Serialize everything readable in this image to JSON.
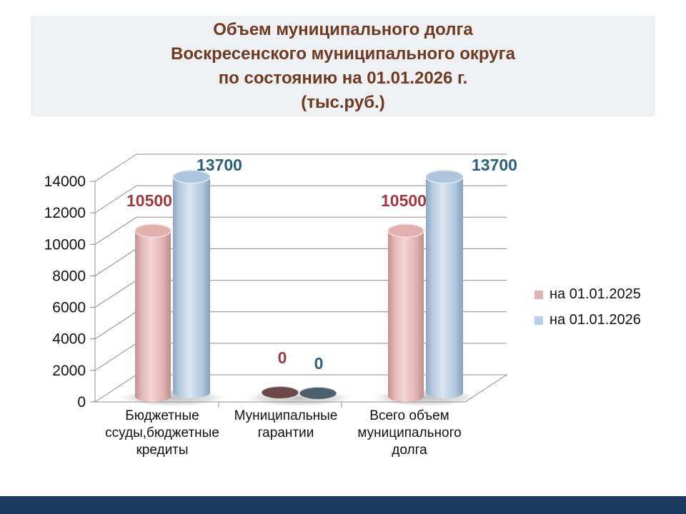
{
  "title": {
    "lines": [
      "Объем муниципального долга",
      "Воскресенского муниципального округа",
      "по состоянию на 01.01.2026 г.",
      "(тыс.руб.)"
    ],
    "color": "#6e3a20",
    "bg": "#eef0f4"
  },
  "footer": {
    "color": "#1b3960"
  },
  "chart_data": {
    "type": "bar",
    "style": "3d-cylinder",
    "title": "Объем муниципального долга Воскресенского муниципального округа по состоянию на 01.01.2026 г. (тыс.руб.)",
    "categories": [
      "Бюджетные ссуды,бюджетные кредиты",
      "Муниципальные гарантии",
      "Всего объем муниципального долга"
    ],
    "category_lines": [
      [
        "Бюджетные",
        "ссуды,бюджетные",
        "кредиты"
      ],
      [
        "Муниципальные",
        "гарантии"
      ],
      [
        "Всего объем",
        "муниципального",
        "долга"
      ]
    ],
    "series": [
      {
        "name": "на 01.01.2025",
        "values": [
          10500,
          0,
          10500
        ],
        "color": "#e5b2b2",
        "zero_color": "#6e4647",
        "label_color": "#9c3a42"
      },
      {
        "name": "на 01.01.2026",
        "values": [
          13700,
          0,
          13700
        ],
        "color": "#b9cfe8",
        "zero_color": "#4e5f6d",
        "label_color": "#2a607a"
      }
    ],
    "ylim": [
      0,
      14000
    ],
    "yticks": [
      0,
      2000,
      4000,
      6000,
      8000,
      10000,
      12000,
      14000
    ],
    "grid": true,
    "legend_position": "right",
    "axis_color": "#8c8c8c",
    "tick_label_color": "#111111",
    "category_label_color": "#111111"
  }
}
